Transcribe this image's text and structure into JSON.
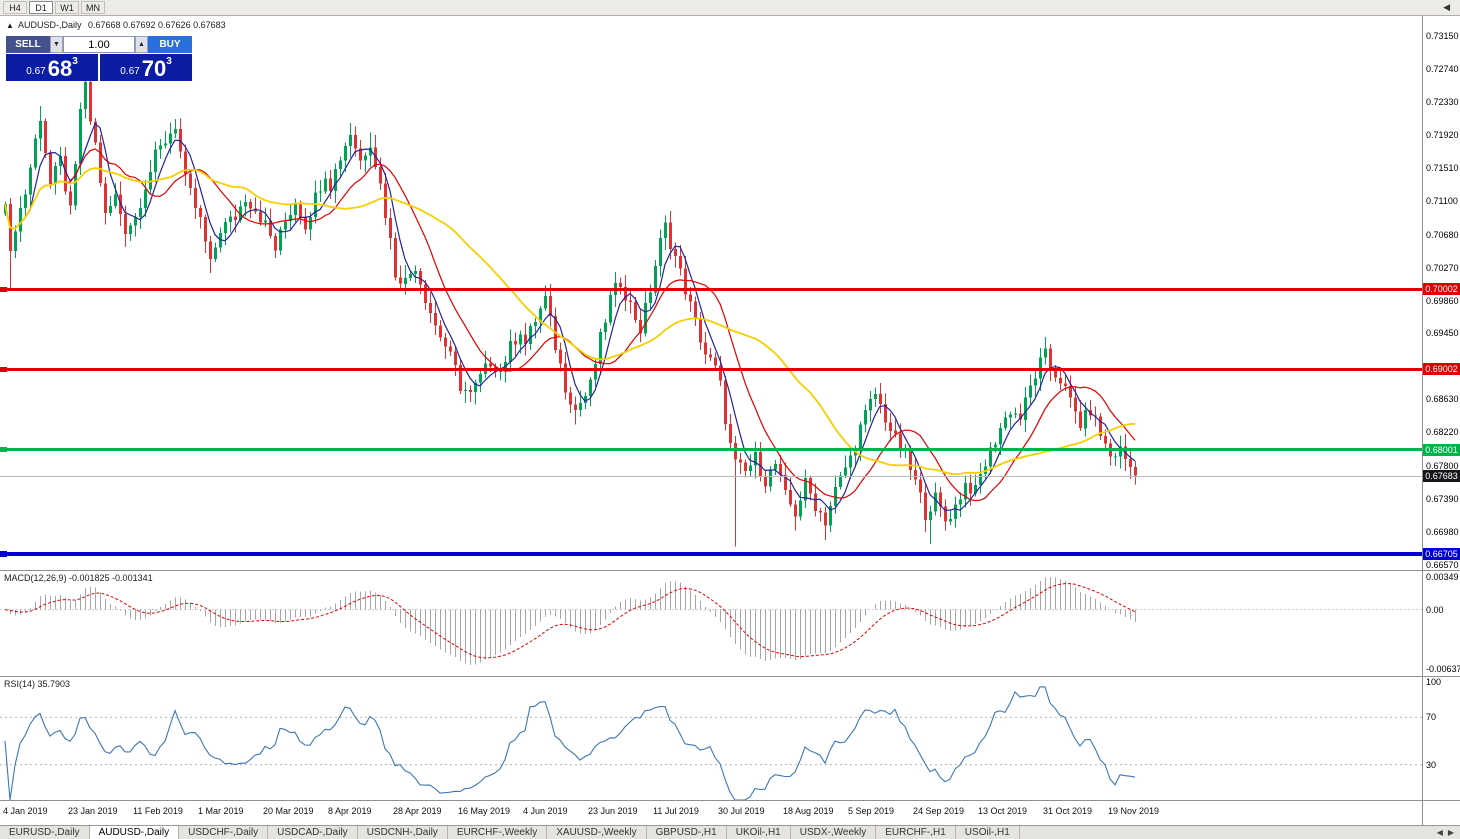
{
  "toolbar": {
    "timeframes": [
      {
        "label": "H4",
        "active": false
      },
      {
        "label": "D1",
        "active": true
      },
      {
        "label": "W1",
        "active": false
      },
      {
        "label": "MN",
        "active": false
      }
    ],
    "scroll_left_icon": "◀"
  },
  "chart": {
    "title": "AUDUSD-,Daily",
    "ohlc_text": "0.67668 0.67692 0.67626 0.67683",
    "open": "0.67668",
    "high": "0.67692",
    "low": "0.67626",
    "close": "0.67683"
  },
  "trade_panel": {
    "sell_label": "SELL",
    "buy_label": "BUY",
    "volume": "1.00",
    "sell_price_prefix": "0.67",
    "sell_price_big": "68",
    "sell_price_sup": "3",
    "buy_price_prefix": "0.67",
    "buy_price_big": "70",
    "buy_price_sup": "3"
  },
  "price_axis": {
    "max": 0.7315,
    "min": 0.6657,
    "labels": [
      "0.73150",
      "0.72740",
      "0.72330",
      "0.71920",
      "0.71510",
      "0.71100",
      "0.70680",
      "0.70270",
      "0.69860",
      "0.69450",
      "0.68630",
      "0.68220",
      "0.67800",
      "0.67390",
      "0.66980",
      "0.66570"
    ]
  },
  "levels": [
    {
      "label": "0.70002",
      "value": 0.70002,
      "color": "#dd0000",
      "thickness": 3
    },
    {
      "label": "0.69002",
      "value": 0.69002,
      "color": "#dd0000",
      "thickness": 3
    },
    {
      "label": "0.68001",
      "value": 0.68001,
      "color": "#00b44c",
      "thickness": 3
    },
    {
      "label": "0.66705",
      "value": 0.66705,
      "color": "#0000d6",
      "thickness": 4
    }
  ],
  "current_price": {
    "label": "0.67683",
    "value": 0.67683,
    "box_color": "#17171b"
  },
  "macd_panel": {
    "label": "MACD(12,26,9) -0.001825 -0.001341",
    "params": {
      "fast": 12,
      "slow": 26,
      "signal": 9
    },
    "axis_labels": [
      {
        "text": "0.00349",
        "value": 0.00349
      },
      {
        "text": "0.00",
        "value": 0
      },
      {
        "text": "-0.00637",
        "value": -0.00637
      }
    ],
    "histogram_color": "#a6a6a6",
    "signal_color": "#e00000"
  },
  "rsi_panel": {
    "label": "RSI(14) 35.7903",
    "period": 14,
    "value": 35.7903,
    "level_values": [
      100,
      70,
      30
    ],
    "line_color": "#3e76b5"
  },
  "date_axis": [
    "4 Jan 2019",
    "23 Jan 2019",
    "11 Feb 2019",
    "1 Mar 2019",
    "20 Mar 2019",
    "8 Apr 2019",
    "28 Apr 2019",
    "16 May 2019",
    "4 Jun 2019",
    "23 Jun 2019",
    "11 Jul 2019",
    "30 Jul 2019",
    "18 Aug 2019",
    "5 Sep 2019",
    "24 Sep 2019",
    "13 Oct 2019",
    "31 Oct 2019",
    "19 Nov 2019"
  ],
  "tabs": [
    {
      "label": "EURUSD-,Daily",
      "active": false
    },
    {
      "label": "AUDUSD-,Daily",
      "active": true
    },
    {
      "label": "USDCHF-,Daily",
      "active": false
    },
    {
      "label": "USDCAD-,Daily",
      "active": false
    },
    {
      "label": "USDCNH-,Daily",
      "active": false
    },
    {
      "label": "EURCHF-,Weekly",
      "active": false
    },
    {
      "label": "XAUUSD-,Weekly",
      "active": false
    },
    {
      "label": "GBPUSD-,H1",
      "active": false
    },
    {
      "label": "UKOil-,H1",
      "active": false
    },
    {
      "label": "USDX-,Weekly",
      "active": false
    },
    {
      "label": "EURCHF-,H1",
      "active": false
    },
    {
      "label": "USOil-,H1",
      "active": false
    }
  ],
  "chart_data": {
    "type": "candlestick",
    "symbol": "AUDUSD",
    "timeframe": "Daily",
    "ylim": [
      0.6657,
      0.7315
    ],
    "num_days": 227,
    "up_color": "#00a254",
    "down_color": "#e03232",
    "price_path_anchors": [
      [
        0,
        0.7115
      ],
      [
        1,
        0.704
      ],
      [
        2,
        0.708
      ],
      [
        4,
        0.712
      ],
      [
        6,
        0.7185
      ],
      [
        7,
        0.7215
      ],
      [
        9,
        0.713
      ],
      [
        11,
        0.716
      ],
      [
        13,
        0.7095
      ],
      [
        14,
        0.715
      ],
      [
        15,
        0.7225
      ],
      [
        16,
        0.725
      ],
      [
        17,
        0.721
      ],
      [
        18,
        0.718
      ],
      [
        20,
        0.709
      ],
      [
        22,
        0.7115
      ],
      [
        24,
        0.7075
      ],
      [
        26,
        0.709
      ],
      [
        28,
        0.713
      ],
      [
        30,
        0.7165
      ],
      [
        32,
        0.7185
      ],
      [
        34,
        0.7205
      ],
      [
        36,
        0.7135
      ],
      [
        39,
        0.7085
      ],
      [
        41,
        0.703
      ],
      [
        43,
        0.7075
      ],
      [
        46,
        0.709
      ],
      [
        48,
        0.7115
      ],
      [
        50,
        0.71
      ],
      [
        52,
        0.708
      ],
      [
        54,
        0.705
      ],
      [
        56,
        0.7085
      ],
      [
        58,
        0.711
      ],
      [
        60,
        0.708
      ],
      [
        62,
        0.7115
      ],
      [
        64,
        0.7145
      ],
      [
        65,
        0.713
      ],
      [
        67,
        0.7165
      ],
      [
        69,
        0.7195
      ],
      [
        71,
        0.716
      ],
      [
        73,
        0.7185
      ],
      [
        75,
        0.713
      ],
      [
        77,
        0.706
      ],
      [
        78,
        0.702
      ],
      [
        80,
        0.701
      ],
      [
        82,
        0.703
      ],
      [
        84,
        0.699
      ],
      [
        86,
        0.6955
      ],
      [
        88,
        0.693
      ],
      [
        90,
        0.69
      ],
      [
        91,
        0.688
      ],
      [
        93,
        0.6868
      ],
      [
        95,
        0.689
      ],
      [
        97,
        0.691
      ],
      [
        99,
        0.69
      ],
      [
        101,
        0.6928
      ],
      [
        103,
        0.695
      ],
      [
        104,
        0.6932
      ],
      [
        106,
        0.6962
      ],
      [
        108,
        0.6988
      ],
      [
        110,
        0.693
      ],
      [
        112,
        0.688
      ],
      [
        114,
        0.685
      ],
      [
        116,
        0.6868
      ],
      [
        117,
        0.688
      ],
      [
        119,
        0.6938
      ],
      [
        121,
        0.6988
      ],
      [
        123,
        0.701
      ],
      [
        125,
        0.698
      ],
      [
        127,
        0.695
      ],
      [
        129,
        0.7
      ],
      [
        130,
        0.703
      ],
      [
        131,
        0.7058
      ],
      [
        132,
        0.7078
      ],
      [
        134,
        0.704
      ],
      [
        136,
        0.7
      ],
      [
        138,
        0.6958
      ],
      [
        140,
        0.692
      ],
      [
        142,
        0.69
      ],
      [
        143,
        0.688
      ],
      [
        144,
        0.684
      ],
      [
        145,
        0.6805
      ],
      [
        146,
        0.6782
      ],
      [
        148,
        0.6772
      ],
      [
        150,
        0.679
      ],
      [
        152,
        0.6762
      ],
      [
        154,
        0.6782
      ],
      [
        156,
        0.6742
      ],
      [
        158,
        0.6722
      ],
      [
        160,
        0.6758
      ],
      [
        162,
        0.6732
      ],
      [
        164,
        0.6712
      ],
      [
        166,
        0.675
      ],
      [
        168,
        0.6778
      ],
      [
        169,
        0.679
      ],
      [
        171,
        0.6828
      ],
      [
        173,
        0.6858
      ],
      [
        174,
        0.687
      ],
      [
        176,
        0.684
      ],
      [
        178,
        0.6812
      ],
      [
        180,
        0.6792
      ],
      [
        182,
        0.676
      ],
      [
        184,
        0.6722
      ],
      [
        186,
        0.674
      ],
      [
        188,
        0.6712
      ],
      [
        190,
        0.673
      ],
      [
        192,
        0.6758
      ],
      [
        194,
        0.6748
      ],
      [
        195,
        0.6768
      ],
      [
        197,
        0.6798
      ],
      [
        199,
        0.6828
      ],
      [
        201,
        0.685
      ],
      [
        203,
        0.684
      ],
      [
        205,
        0.6878
      ],
      [
        207,
        0.6908
      ],
      [
        208,
        0.6918
      ],
      [
        209,
        0.69
      ],
      [
        211,
        0.6888
      ],
      [
        213,
        0.686
      ],
      [
        215,
        0.6832
      ],
      [
        217,
        0.685
      ],
      [
        219,
        0.682
      ],
      [
        221,
        0.6792
      ],
      [
        223,
        0.68
      ],
      [
        226,
        0.67683
      ]
    ],
    "special_wicks": {
      "highs": {
        "7": 0.7228,
        "16": 0.7262,
        "34": 0.7212,
        "69": 0.7207,
        "73": 0.7195,
        "132": 0.7092,
        "208": 0.693
      },
      "lows": {
        "1": 0.6998,
        "41": 0.702,
        "93": 0.686,
        "114": 0.6832,
        "146": 0.668,
        "158": 0.67,
        "164": 0.6688,
        "185": 0.6683,
        "188": 0.67
      }
    },
    "moving_averages": [
      {
        "period": 5,
        "color": "#22229e",
        "width": 1.2
      },
      {
        "period": 13,
        "color": "#e10000",
        "width": 1.2
      },
      {
        "period": 34,
        "color": "#f7cf00",
        "width": 1.8
      }
    ],
    "last_close": 0.67683
  }
}
